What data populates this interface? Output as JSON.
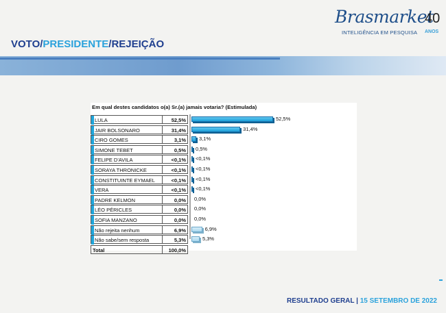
{
  "logo": {
    "brand": "Brasmarket",
    "years": "40",
    "subtitle": "INTELIGÊNCIA EM PESQUISA",
    "anos": "ANOS"
  },
  "header": {
    "title_part1": "VOTO",
    "sep1": "/",
    "title_part2": "PRESIDENTE",
    "sep2": "/",
    "title_part3": "REJEIÇÃO"
  },
  "chart_data": {
    "type": "bar",
    "title": "Em qual destes candidatos o(a) Sr.(a) jamais votaria? (Estimulada)",
    "categories": [
      "LULA",
      "JAIR BOLSONARO",
      "CIRO GOMES",
      "SIMONE TEBET",
      "FELIPE D'AVILA",
      "SORAYA THRONICKE",
      "CONSTITUINTE EYMAEL",
      "VERA",
      "PADRE KELMON",
      "LÉO PÉRICLES",
      "SOFIA MANZANO",
      "Não rejeita nenhum",
      "Não sabe/sem resposta"
    ],
    "values": [
      52.5,
      31.4,
      3.1,
      0.5,
      0.05,
      0.05,
      0.05,
      0.05,
      0.0,
      0.0,
      0.0,
      6.9,
      5.3
    ],
    "labels": [
      "52,5%",
      "31,4%",
      "3,1%",
      "0,5%",
      "<0,1%",
      "<0,1%",
      "<0,1%",
      "<0,1%",
      "0,0%",
      "0,0%",
      "0,0%",
      "6,9%",
      "5,3%"
    ],
    "total_label": "Total",
    "total_value": "100,0%",
    "xlim": [
      0,
      60
    ],
    "colors": {
      "candidate": "#1a9fd9",
      "other": "#a9d7ee"
    }
  },
  "footer": {
    "left": "RESULTADO GERAL",
    "sep": "|",
    "date": "15  SETEMBRO DE 2022"
  }
}
